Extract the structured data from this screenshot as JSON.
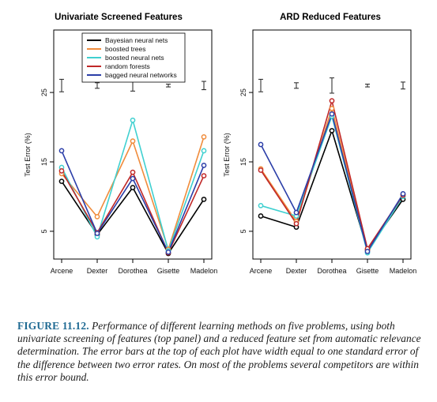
{
  "figure": {
    "label": "FIGURE 11.12.",
    "caption": "Performance of different learning methods on five problems, using both univariate screening of features (top panel) and a reduced feature set from automatic relevance determination. The error bars at the top of each plot have width equal to one standard error of the difference between two error rates. On most of the problems several competitors are within this error bound."
  },
  "colors": {
    "Bayesian neural nets": "#000000",
    "boosted trees": "#f08c3c",
    "boosted neural nets": "#3fd0d0",
    "random forests": "#c02828",
    "bagged neural networks": "#2b3ea8"
  },
  "chart_data": [
    {
      "type": "line",
      "title": "Univariate Screened Features",
      "xlabel": "",
      "ylabel": "Test Error (%)",
      "categories": [
        "Arcene",
        "Dexter",
        "Dorothea",
        "Gisette",
        "Madelon"
      ],
      "yticks": [
        5,
        15,
        25
      ],
      "ylim": [
        1,
        34
      ],
      "legend": "top-left inside",
      "series": [
        {
          "name": "Bayesian neural nets",
          "values": [
            12.2,
            4.5,
            11.3,
            1.8,
            9.6
          ]
        },
        {
          "name": "boosted trees",
          "values": [
            13.3,
            7.1,
            18.0,
            2.4,
            18.6
          ]
        },
        {
          "name": "boosted neural nets",
          "values": [
            14.2,
            4.2,
            21.0,
            2.2,
            16.6
          ]
        },
        {
          "name": "random forests",
          "values": [
            13.7,
            4.8,
            13.5,
            1.9,
            13.0
          ]
        },
        {
          "name": "bagged neural networks",
          "values": [
            16.6,
            4.7,
            12.6,
            2.0,
            14.5
          ]
        }
      ],
      "error_bars": [
        {
          "center": 26.0,
          "half_width": 0.9
        },
        {
          "center": 26.0,
          "half_width": 0.4
        },
        {
          "center": 26.0,
          "half_width": 0.8
        },
        {
          "center": 26.0,
          "half_width": 0.2
        },
        {
          "center": 26.0,
          "half_width": 0.6
        }
      ]
    },
    {
      "type": "line",
      "title": "ARD Reduced Features",
      "xlabel": "",
      "ylabel": "Test Error (%)",
      "categories": [
        "Arcene",
        "Dexter",
        "Dorothea",
        "Gisette",
        "Madelon"
      ],
      "yticks": [
        5,
        15,
        25
      ],
      "ylim": [
        1,
        34
      ],
      "legend": "none",
      "series": [
        {
          "name": "Bayesian neural nets",
          "values": [
            7.2,
            5.6,
            19.5,
            2.3,
            9.6
          ]
        },
        {
          "name": "boosted trees",
          "values": [
            14.0,
            6.4,
            22.7,
            2.3,
            10.3
          ]
        },
        {
          "name": "boosted neural nets",
          "values": [
            8.7,
            7.2,
            21.6,
            1.9,
            10.0
          ]
        },
        {
          "name": "random forests",
          "values": [
            13.8,
            6.1,
            23.8,
            2.5,
            10.2
          ]
        },
        {
          "name": "bagged neural networks",
          "values": [
            17.5,
            7.7,
            21.9,
            2.1,
            10.4
          ]
        }
      ],
      "error_bars": [
        {
          "center": 26.0,
          "half_width": 0.9
        },
        {
          "center": 26.0,
          "half_width": 0.4
        },
        {
          "center": 26.0,
          "half_width": 1.1
        },
        {
          "center": 26.0,
          "half_width": 0.2
        },
        {
          "center": 26.0,
          "half_width": 0.5
        }
      ]
    }
  ]
}
